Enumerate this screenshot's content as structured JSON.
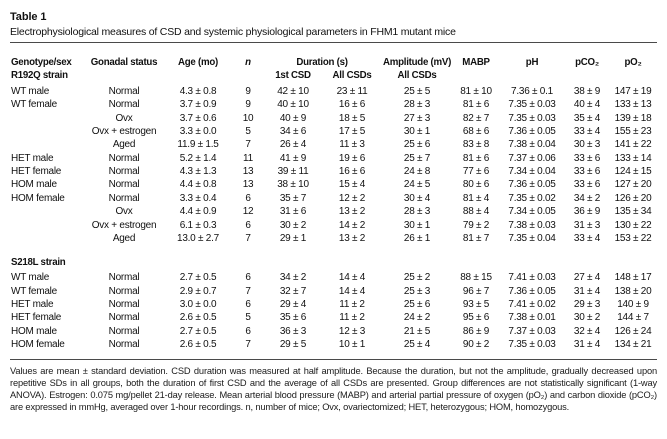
{
  "table": {
    "label": "Table 1",
    "caption": "Electrophysiological measures of CSD and systemic physiological parameters in FHM1 mutant mice",
    "columns": {
      "genotype": "Genotype/sex",
      "gonadal": "Gonadal status",
      "age": "Age (mo)",
      "n": "n",
      "duration_group": "Duration (s)",
      "duration_first": "1st CSD",
      "duration_all": "All CSDs",
      "amplitude_group": "Amplitude (mV)",
      "amplitude_all": "All CSDs",
      "mabp": "MABP",
      "ph": "pH",
      "pco2": "pCO₂",
      "po2": "pO₂"
    },
    "sections": [
      {
        "name": "R192Q strain",
        "rows": [
          [
            "WT male",
            "Normal",
            "4.3 ± 0.8",
            "9",
            "42 ± 10",
            "23 ± 11",
            "25 ± 5",
            "81 ± 10",
            "7.36 ± 0.1",
            "38 ± 9",
            "147 ± 19"
          ],
          [
            "WT female",
            "Normal",
            "3.7 ± 0.9",
            "9",
            "40 ± 10",
            "16 ± 6",
            "28 ± 3",
            "81 ± 6",
            "7.35 ± 0.03",
            "40 ± 4",
            "133 ± 13"
          ],
          [
            "",
            "Ovx",
            "3.7 ± 0.6",
            "10",
            "40 ± 9",
            "18 ± 5",
            "27 ± 3",
            "82 ± 7",
            "7.35 ± 0.03",
            "35 ± 4",
            "139 ± 18"
          ],
          [
            "",
            "Ovx + estrogen",
            "3.3 ± 0.0",
            "5",
            "34 ± 6",
            "17 ± 5",
            "30 ± 1",
            "68 ± 6",
            "7.36 ± 0.05",
            "33 ± 4",
            "155 ± 23"
          ],
          [
            "",
            "Aged",
            "11.9 ± 1.5",
            "7",
            "26 ± 4",
            "11 ± 3",
            "25 ± 6",
            "83 ± 8",
            "7.38 ± 0.04",
            "30 ± 3",
            "141 ± 22"
          ],
          [
            "HET male",
            "Normal",
            "5.2 ± 1.4",
            "11",
            "41 ± 9",
            "19 ± 6",
            "25 ± 7",
            "81 ± 6",
            "7.37 ± 0.06",
            "33 ± 6",
            "133 ± 14"
          ],
          [
            "HET female",
            "Normal",
            "4.3 ± 1.3",
            "13",
            "39 ± 11",
            "16 ± 6",
            "24 ± 8",
            "77 ± 6",
            "7.34 ± 0.04",
            "33 ± 6",
            "124 ± 15"
          ],
          [
            "HOM male",
            "Normal",
            "4.4 ± 0.8",
            "13",
            "38 ± 10",
            "15 ± 4",
            "24 ± 5",
            "80 ± 6",
            "7.36 ± 0.05",
            "33 ± 6",
            "127 ± 20"
          ],
          [
            "HOM female",
            "Normal",
            "3.3 ± 0.4",
            "6",
            "35 ± 7",
            "12 ± 2",
            "30 ± 4",
            "81 ± 4",
            "7.35 ± 0.02",
            "34 ± 2",
            "126 ± 20"
          ],
          [
            "",
            "Ovx",
            "4.4 ± 0.9",
            "12",
            "31 ± 6",
            "13 ± 2",
            "28 ± 3",
            "88 ± 4",
            "7.34 ± 0.05",
            "36 ± 9",
            "135 ± 34"
          ],
          [
            "",
            "Ovx + estrogen",
            "6.1 ± 0.3",
            "6",
            "30 ± 2",
            "14 ± 2",
            "30 ± 1",
            "79 ± 2",
            "7.38 ± 0.03",
            "31 ± 3",
            "130 ± 22"
          ],
          [
            "",
            "Aged",
            "13.0 ± 2.7",
            "7",
            "29 ± 1",
            "13 ± 2",
            "26 ± 1",
            "81 ± 7",
            "7.35 ± 0.04",
            "33 ± 4",
            "153 ± 22"
          ]
        ]
      },
      {
        "name": "S218L strain",
        "rows": [
          [
            "WT male",
            "Normal",
            "2.7 ± 0.5",
            "6",
            "34 ± 2",
            "14 ± 4",
            "25 ± 2",
            "88 ± 15",
            "7.41 ± 0.03",
            "27 ± 4",
            "148 ± 17"
          ],
          [
            "WT female",
            "Normal",
            "2.9 ± 0.7",
            "7",
            "32 ± 7",
            "14 ± 4",
            "25 ± 3",
            "96 ± 7",
            "7.36 ± 0.05",
            "31 ± 4",
            "138 ± 20"
          ],
          [
            "HET male",
            "Normal",
            "3.0 ± 0.0",
            "6",
            "29 ± 4",
            "11 ± 2",
            "25 ± 6",
            "93 ± 5",
            "7.41 ± 0.02",
            "29 ± 3",
            "140 ± 9"
          ],
          [
            "HET female",
            "Normal",
            "2.6 ± 0.5",
            "5",
            "35 ± 6",
            "11 ± 2",
            "24 ± 2",
            "95 ± 6",
            "7.38 ± 0.01",
            "30 ± 2",
            "144 ± 7"
          ],
          [
            "HOM male",
            "Normal",
            "2.7 ± 0.5",
            "6",
            "36 ± 3",
            "12 ± 3",
            "21 ± 5",
            "86 ± 9",
            "7.37 ± 0.03",
            "32 ± 4",
            "126 ± 24"
          ],
          [
            "HOM female",
            "Normal",
            "2.6 ± 0.5",
            "7",
            "29 ± 5",
            "10 ± 1",
            "25 ± 4",
            "90 ± 2",
            "7.35 ± 0.03",
            "31 ± 4",
            "134 ± 21"
          ]
        ]
      }
    ],
    "footnote": "Values are mean ± standard deviation. CSD duration was measured at half amplitude. Because the duration, but not the amplitude, gradually decreased upon repetitive SDs in all groups, both the duration of first CSD and the average of all CSDs are presented. Group differences are not statistically significant (1-way ANOVA). Estrogen: 0.075 mg/pellet 21-day release. Mean arterial blood pressure (MABP) and arterial partial pressure of oxygen (pO₂) and carbon dioxide (pCO₂) are expressed in mmHg, averaged over 1-hour recordings. n, number of mice; Ovx, ovariectomized; HET, heterozygous; HOM, homozygous."
  }
}
